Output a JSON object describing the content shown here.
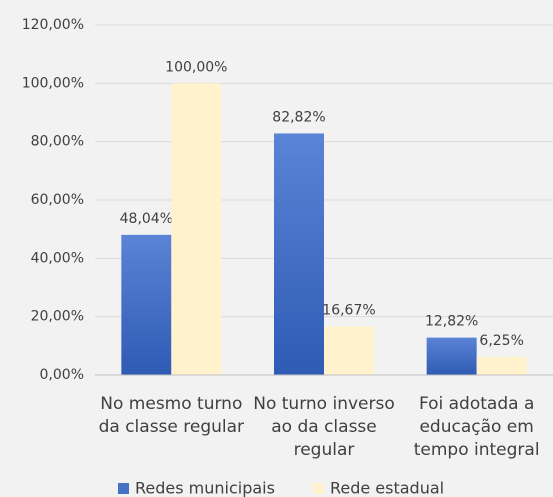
{
  "chart_data": {
    "type": "bar",
    "categories": [
      "No mesmo turno da classe regular",
      "No turno inverso ao da classe regular",
      "Foi adotada a educação em tempo integral"
    ],
    "series": [
      {
        "name": "Redes municipais",
        "color": "#4472c4",
        "values": [
          48.04,
          82.82,
          12.82
        ],
        "value_labels": [
          "48,04%",
          "82,82%",
          "12,82%"
        ]
      },
      {
        "name": "Rede estadual",
        "color": "#fff2cc",
        "values": [
          100,
          16.67,
          6.25
        ],
        "value_labels": [
          "100,00%",
          "16,67%",
          "6,25%"
        ]
      }
    ],
    "ylim": [
      0,
      120
    ],
    "yticks": [
      {
        "value": 0,
        "label": "0,00%"
      },
      {
        "value": 20,
        "label": "20,00%"
      },
      {
        "value": 40,
        "label": "40,00%"
      },
      {
        "value": 60,
        "label": "60,00%"
      },
      {
        "value": 80,
        "label": "80,00%"
      },
      {
        "value": 100,
        "label": "100,00%"
      },
      {
        "value": 120,
        "label": "120,00%"
      }
    ],
    "grid": true
  }
}
